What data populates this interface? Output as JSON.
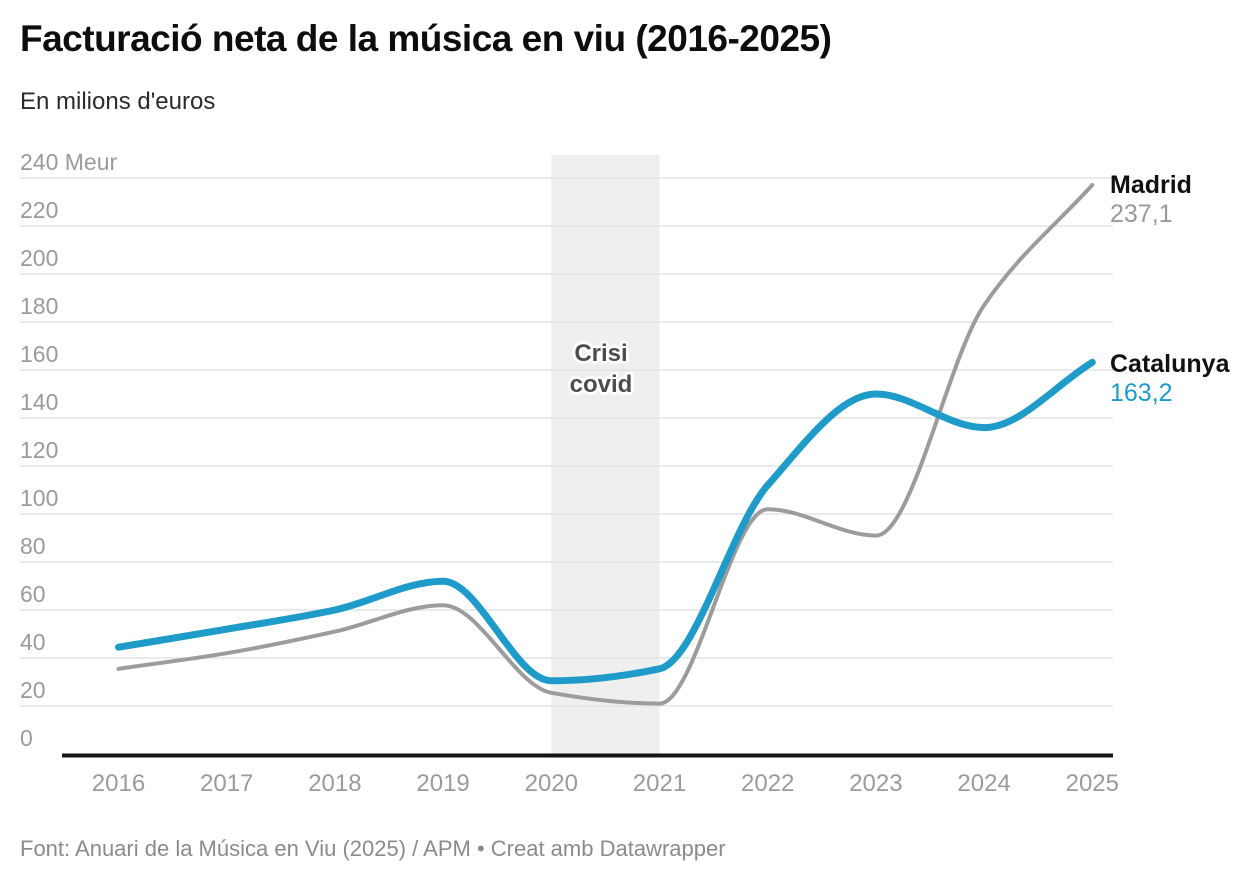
{
  "header": {
    "title": "Facturació neta de la música en viu (2016-2025)",
    "subtitle": "En milions d'euros"
  },
  "chart_data": {
    "type": "line",
    "x": [
      2016,
      2017,
      2018,
      2019,
      2020,
      2021,
      2022,
      2023,
      2024,
      2025
    ],
    "xticks": [
      "2016",
      "2017",
      "2018",
      "2019",
      "2020",
      "2021",
      "2022",
      "2023",
      "2024",
      "2025"
    ],
    "series": [
      {
        "name": "Madrid",
        "values": [
          35.5,
          42,
          51,
          62,
          25.5,
          21,
          102,
          91,
          187,
          237.1
        ],
        "color": "#9c9c9c",
        "end_label": "Madrid",
        "end_value_label": "237,1",
        "end_value_color": "#9a9a9a",
        "stroke_width": 4
      },
      {
        "name": "Catalunya",
        "values": [
          44.5,
          52,
          60,
          72,
          30.5,
          35.5,
          112,
          150,
          136,
          163.2
        ],
        "color": "#1e9bc9",
        "end_label": "Catalunya",
        "end_value_label": "163,2",
        "end_value_color": "#1e9bc9",
        "stroke_width": 7
      }
    ],
    "yaxis": {
      "min": 0,
      "max": 240,
      "step": 20,
      "top_tick_label": "240 Meur",
      "tick_labels": [
        "0",
        "20",
        "40",
        "60",
        "80",
        "100",
        "120",
        "140",
        "160",
        "180",
        "200",
        "220",
        "240 Meur"
      ]
    },
    "annotation": {
      "label_line1": "Crisi",
      "label_line2": "covid",
      "x_from": 2020,
      "x_to": 2021,
      "fill": "#efefef",
      "text_color": "#4d4d4d"
    },
    "grid": true,
    "legend_position": "end-of-line",
    "title": "Facturació neta de la música en viu (2016-2025)",
    "ylabel": "En milions d'euros"
  },
  "colors": {
    "gridline": "#e3e3e3",
    "tick_text": "#9b9b9b",
    "axis_line": "#151515",
    "catalunya_blue": "#1e9bc9",
    "madrid_gray": "#9c9c9c"
  },
  "footer": {
    "source": "Font: Anuari de la Música en Viu (2025) / APM • Creat amb Datawrapper"
  }
}
